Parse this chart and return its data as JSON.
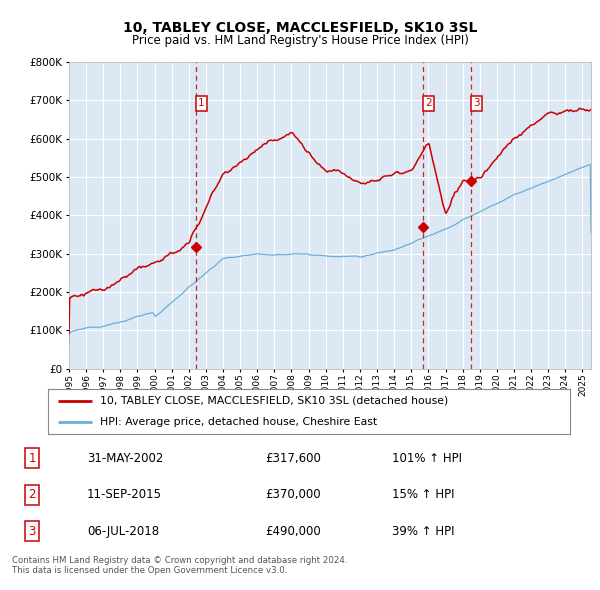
{
  "title": "10, TABLEY CLOSE, MACCLESFIELD, SK10 3SL",
  "subtitle": "Price paid vs. HM Land Registry's House Price Index (HPI)",
  "plot_bg_color": "#dce9f5",
  "red_line_label": "10, TABLEY CLOSE, MACCLESFIELD, SK10 3SL (detached house)",
  "blue_line_label": "HPI: Average price, detached house, Cheshire East",
  "footnote_line1": "Contains HM Land Registry data © Crown copyright and database right 2024.",
  "footnote_line2": "This data is licensed under the Open Government Licence v3.0.",
  "sale_markers": [
    {
      "num": 1,
      "date": "31-MAY-2002",
      "price": "£317,600",
      "pct": "101%",
      "x_year": 2002.42,
      "y_val": 317600
    },
    {
      "num": 2,
      "date": "11-SEP-2015",
      "price": "£370,000",
      "pct": "15%",
      "x_year": 2015.69,
      "y_val": 370000
    },
    {
      "num": 3,
      "date": "06-JUL-2018",
      "price": "£490,000",
      "pct": "39%",
      "x_year": 2018.51,
      "y_val": 490000
    }
  ],
  "ylim": [
    0,
    800000
  ],
  "yticks": [
    0,
    100000,
    200000,
    300000,
    400000,
    500000,
    600000,
    700000,
    800000
  ],
  "xlim_start": 1995.0,
  "xlim_end": 2025.5,
  "red_color": "#cc0000",
  "blue_color": "#6baed6"
}
